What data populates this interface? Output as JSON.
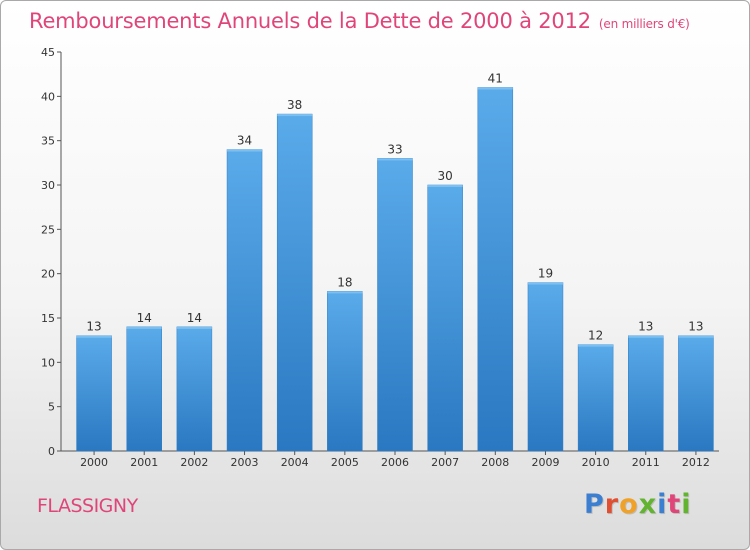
{
  "title": "Remboursements Annuels de la Dette de 2000 à 2012",
  "unit": "(en milliers d'€)",
  "town": "FLASSIGNY",
  "logo": {
    "letters": [
      "P",
      "r",
      "o",
      "x",
      "i",
      "t",
      "i"
    ],
    "colors": [
      "#3c7fd1",
      "#e04f32",
      "#f0a127",
      "#62b330",
      "#3c7fd1",
      "#e0457a",
      "#62b330"
    ]
  },
  "colors": {
    "bar_top": "#5aabea",
    "bar_bottom": "#2a78c1",
    "title": "#e0457a"
  },
  "chart_data": {
    "type": "bar",
    "categories": [
      "2000",
      "2001",
      "2002",
      "2003",
      "2004",
      "2005",
      "2006",
      "2007",
      "2008",
      "2009",
      "2010",
      "2011",
      "2012"
    ],
    "values": [
      13,
      14,
      14,
      34,
      38,
      18,
      33,
      30,
      41,
      19,
      12,
      13,
      13
    ],
    "ylim": [
      0,
      45
    ],
    "yticks": [
      0,
      5,
      10,
      15,
      20,
      25,
      30,
      35,
      40,
      45
    ],
    "grid": false,
    "data_labels": true
  }
}
